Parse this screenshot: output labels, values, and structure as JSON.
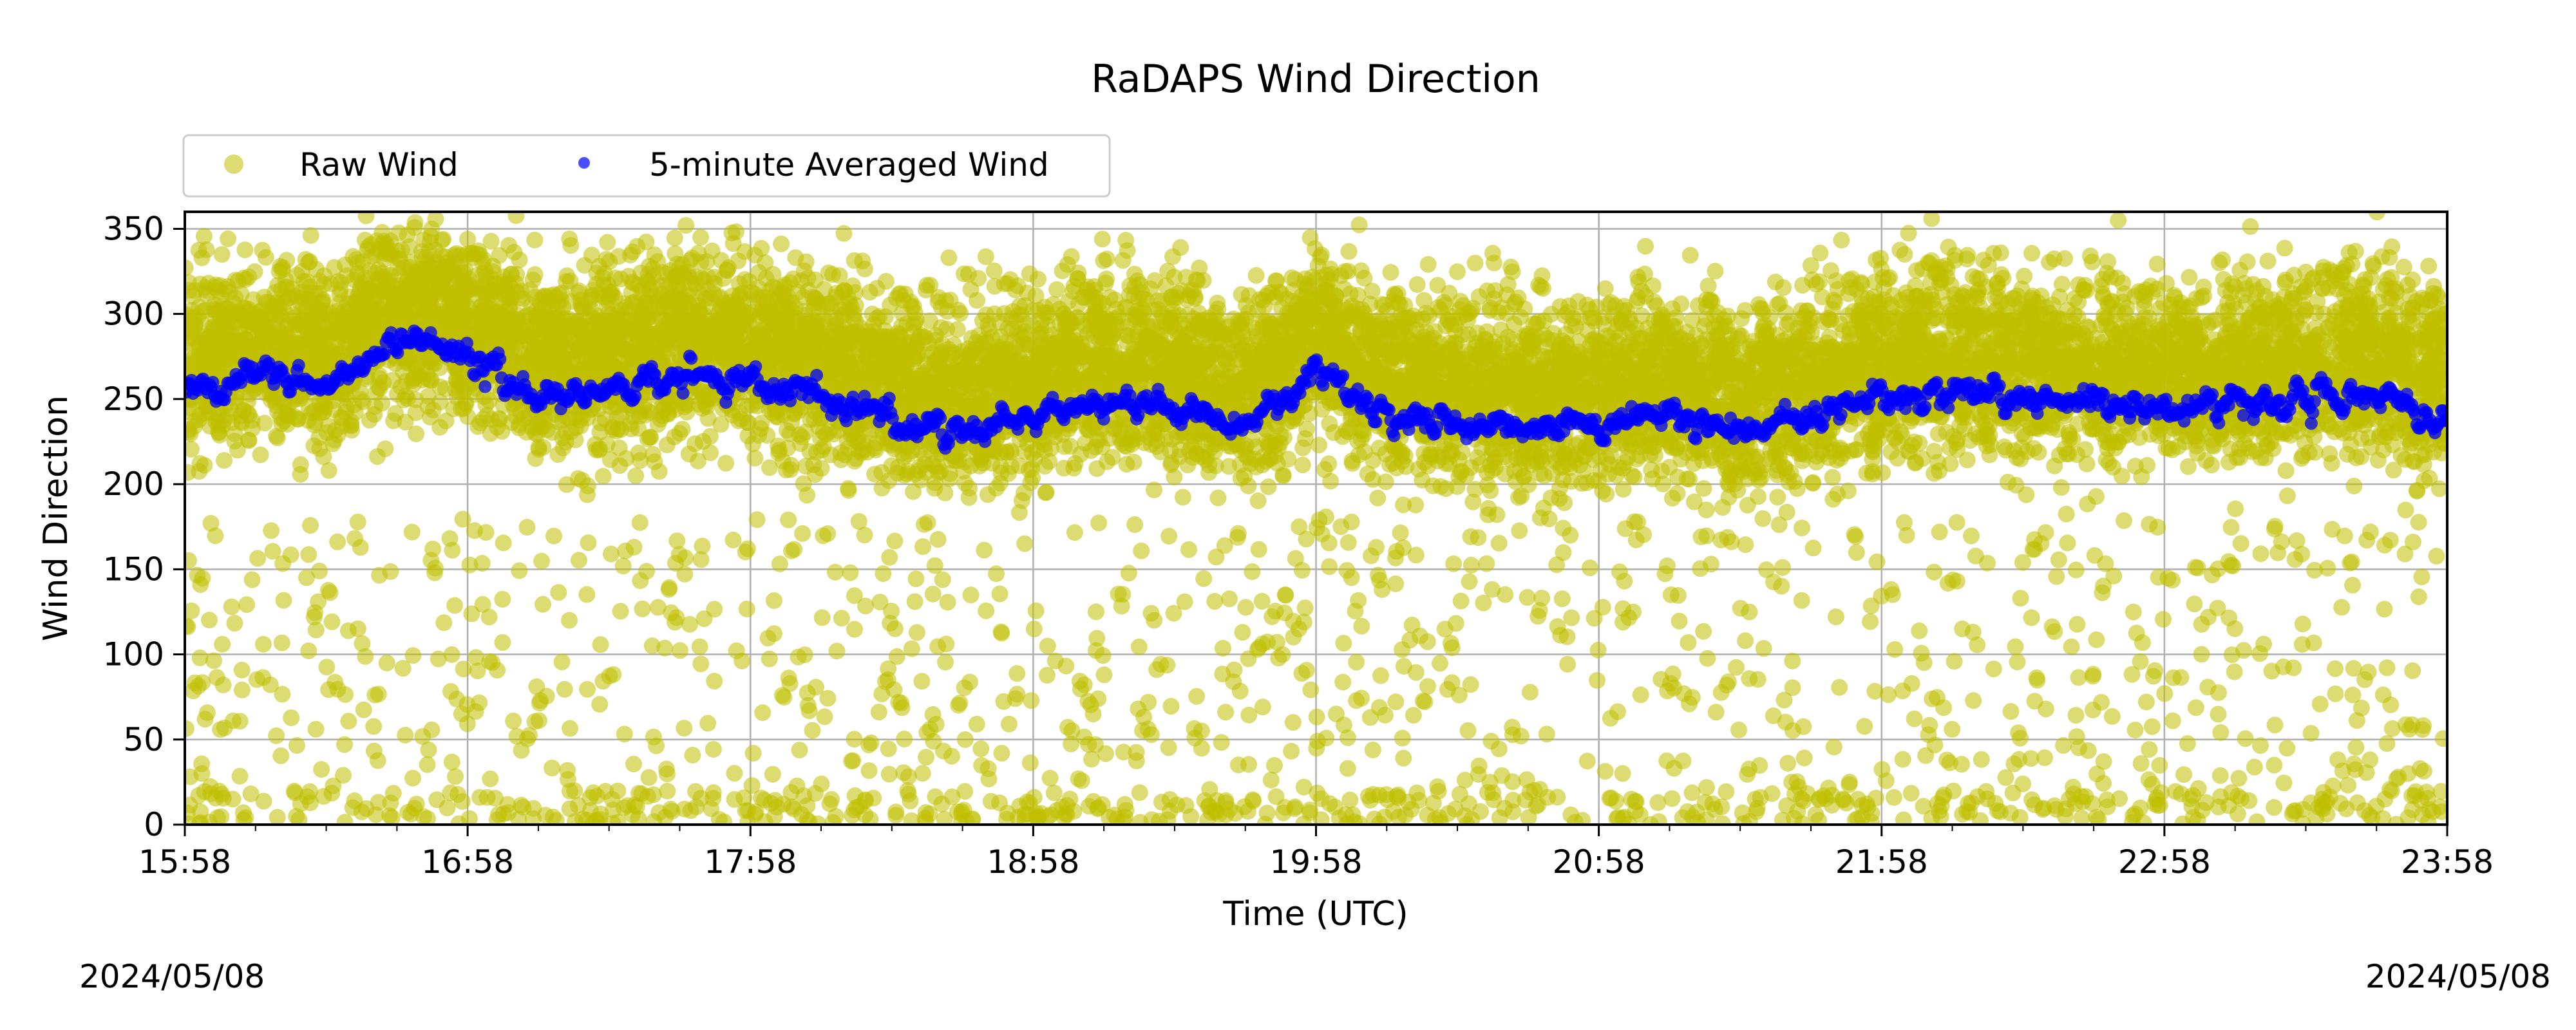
{
  "chart_data": {
    "type": "scatter",
    "title": "RaDAPS Wind Direction",
    "xlabel": "Time (UTC)",
    "ylabel": "Wind Direction",
    "date_left": "2024/05/08",
    "date_right": "2024/05/08",
    "x_range": [
      "15:58",
      "23:58"
    ],
    "ylim": [
      0,
      360
    ],
    "x_ticks": [
      "15:58",
      "16:58",
      "17:58",
      "18:58",
      "19:58",
      "20:58",
      "21:58",
      "22:58",
      "23:58"
    ],
    "y_ticks": [
      "0",
      "50",
      "100",
      "150",
      "200",
      "250",
      "300",
      "350"
    ],
    "grid": true,
    "legend_position": "top-left, above plot",
    "legend": [
      {
        "label": "Raw Wind",
        "color": "#bfbf00",
        "marker": "circle-large"
      },
      {
        "label": "5-minute Averaged Wind",
        "color": "#0000ff",
        "marker": "circle-small"
      }
    ],
    "series": [
      {
        "name": "Raw Wind",
        "color": "#bfbf00",
        "distribution": "dense scatter of roughly one sample per second, concentrated between about 170 and 360 degrees with sparse points down to 0",
        "sample_x_hours_after_start": [
          0,
          1,
          2,
          3,
          4,
          5,
          6,
          7,
          8
        ],
        "sample_y": [
          280,
          270,
          270,
          260,
          250,
          240,
          260,
          250,
          250
        ]
      },
      {
        "name": "5-minute Averaged Wind",
        "color": "#0000ff",
        "x": [
          "15:58",
          "16:13",
          "16:28",
          "16:43",
          "16:58",
          "17:13",
          "17:28",
          "17:43",
          "17:58",
          "18:13",
          "18:28",
          "18:43",
          "18:58",
          "19:13",
          "19:28",
          "19:43",
          "19:58",
          "20:13",
          "20:28",
          "20:43",
          "20:58",
          "21:13",
          "21:28",
          "21:43",
          "21:58",
          "22:13",
          "22:28",
          "22:43",
          "22:58",
          "23:13",
          "23:28",
          "23:43",
          "23:58"
        ],
        "values": [
          255,
          265,
          255,
          285,
          275,
          250,
          255,
          265,
          260,
          250,
          240,
          230,
          240,
          250,
          245,
          235,
          265,
          240,
          235,
          230,
          235,
          240,
          230,
          240,
          250,
          255,
          250,
          250,
          245,
          245,
          250,
          255,
          240
        ]
      }
    ]
  }
}
